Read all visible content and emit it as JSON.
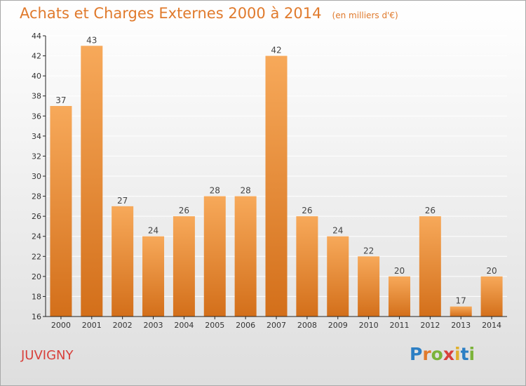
{
  "chart_title": {
    "main": "Achats et Charges Externes 2000 à 2014",
    "unit": "(en milliers d'€)"
  },
  "commune": "JUVIGNY",
  "logo_text": "Proxiti",
  "colors": {
    "bar_light": "#f7a95a",
    "bar_dark": "#d36f1a",
    "title": "#e07a2c",
    "commune": "#d8403b",
    "grid": "#ffffff",
    "axis": "#222222"
  },
  "chart_data": {
    "type": "bar",
    "title": "Achats et Charges Externes 2000 à 2014",
    "subtitle": "(en milliers d'€)",
    "categories": [
      "2000",
      "2001",
      "2002",
      "2003",
      "2004",
      "2005",
      "2006",
      "2007",
      "2008",
      "2009",
      "2010",
      "2011",
      "2012",
      "2013",
      "2014"
    ],
    "values": [
      37,
      43,
      27,
      24,
      26,
      28,
      28,
      42,
      26,
      24,
      22,
      20,
      26,
      17,
      20
    ],
    "ylim": [
      16,
      44
    ],
    "yticks": [
      16,
      18,
      20,
      22,
      24,
      26,
      28,
      30,
      32,
      34,
      36,
      38,
      40,
      42,
      44
    ],
    "grid": true,
    "data_labels": true
  }
}
